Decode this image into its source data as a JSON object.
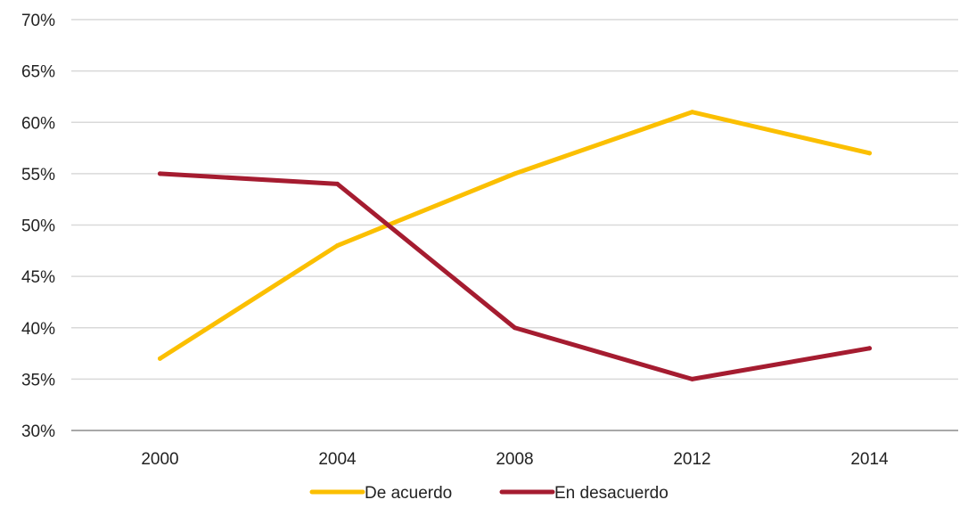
{
  "chart_data": {
    "type": "line",
    "categories": [
      "2000",
      "2004",
      "2008",
      "2012",
      "2014"
    ],
    "y_tick_labels": [
      "30%",
      "35%",
      "40%",
      "45%",
      "50%",
      "55%",
      "60%",
      "65%",
      "70%"
    ],
    "ylim": [
      30,
      70
    ],
    "y_unit": "%",
    "grid": true,
    "legend_position": "bottom",
    "series": [
      {
        "name": "De acuerdo",
        "color": "#fbbf00",
        "values": [
          37,
          48,
          55,
          61,
          57
        ]
      },
      {
        "name": "En desacuerdo",
        "color": "#a51c30",
        "values": [
          55,
          54,
          40,
          35,
          38
        ]
      }
    ]
  }
}
